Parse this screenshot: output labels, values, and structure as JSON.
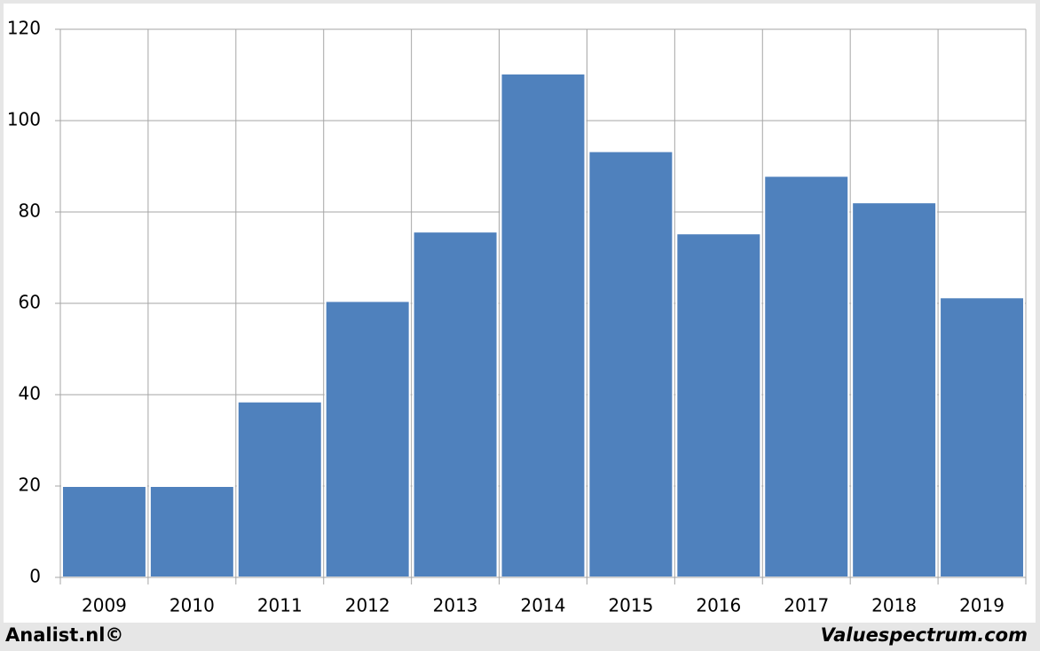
{
  "chart_data": {
    "type": "bar",
    "categories": [
      "2009",
      "2010",
      "2011",
      "2012",
      "2013",
      "2014",
      "2015",
      "2016",
      "2017",
      "2018",
      "2019"
    ],
    "values": [
      20,
      20,
      38.5,
      60.5,
      75.7,
      110.3,
      93.3,
      75.3,
      87.9,
      82.1,
      61.3
    ],
    "color": "#4f81bd",
    "ylim": [
      0,
      120
    ],
    "yticks": [
      0,
      20,
      40,
      60,
      80,
      100,
      120
    ],
    "grid": true,
    "footer_left": "Analist.nl©",
    "footer_right": "Valuespectrum.com"
  }
}
